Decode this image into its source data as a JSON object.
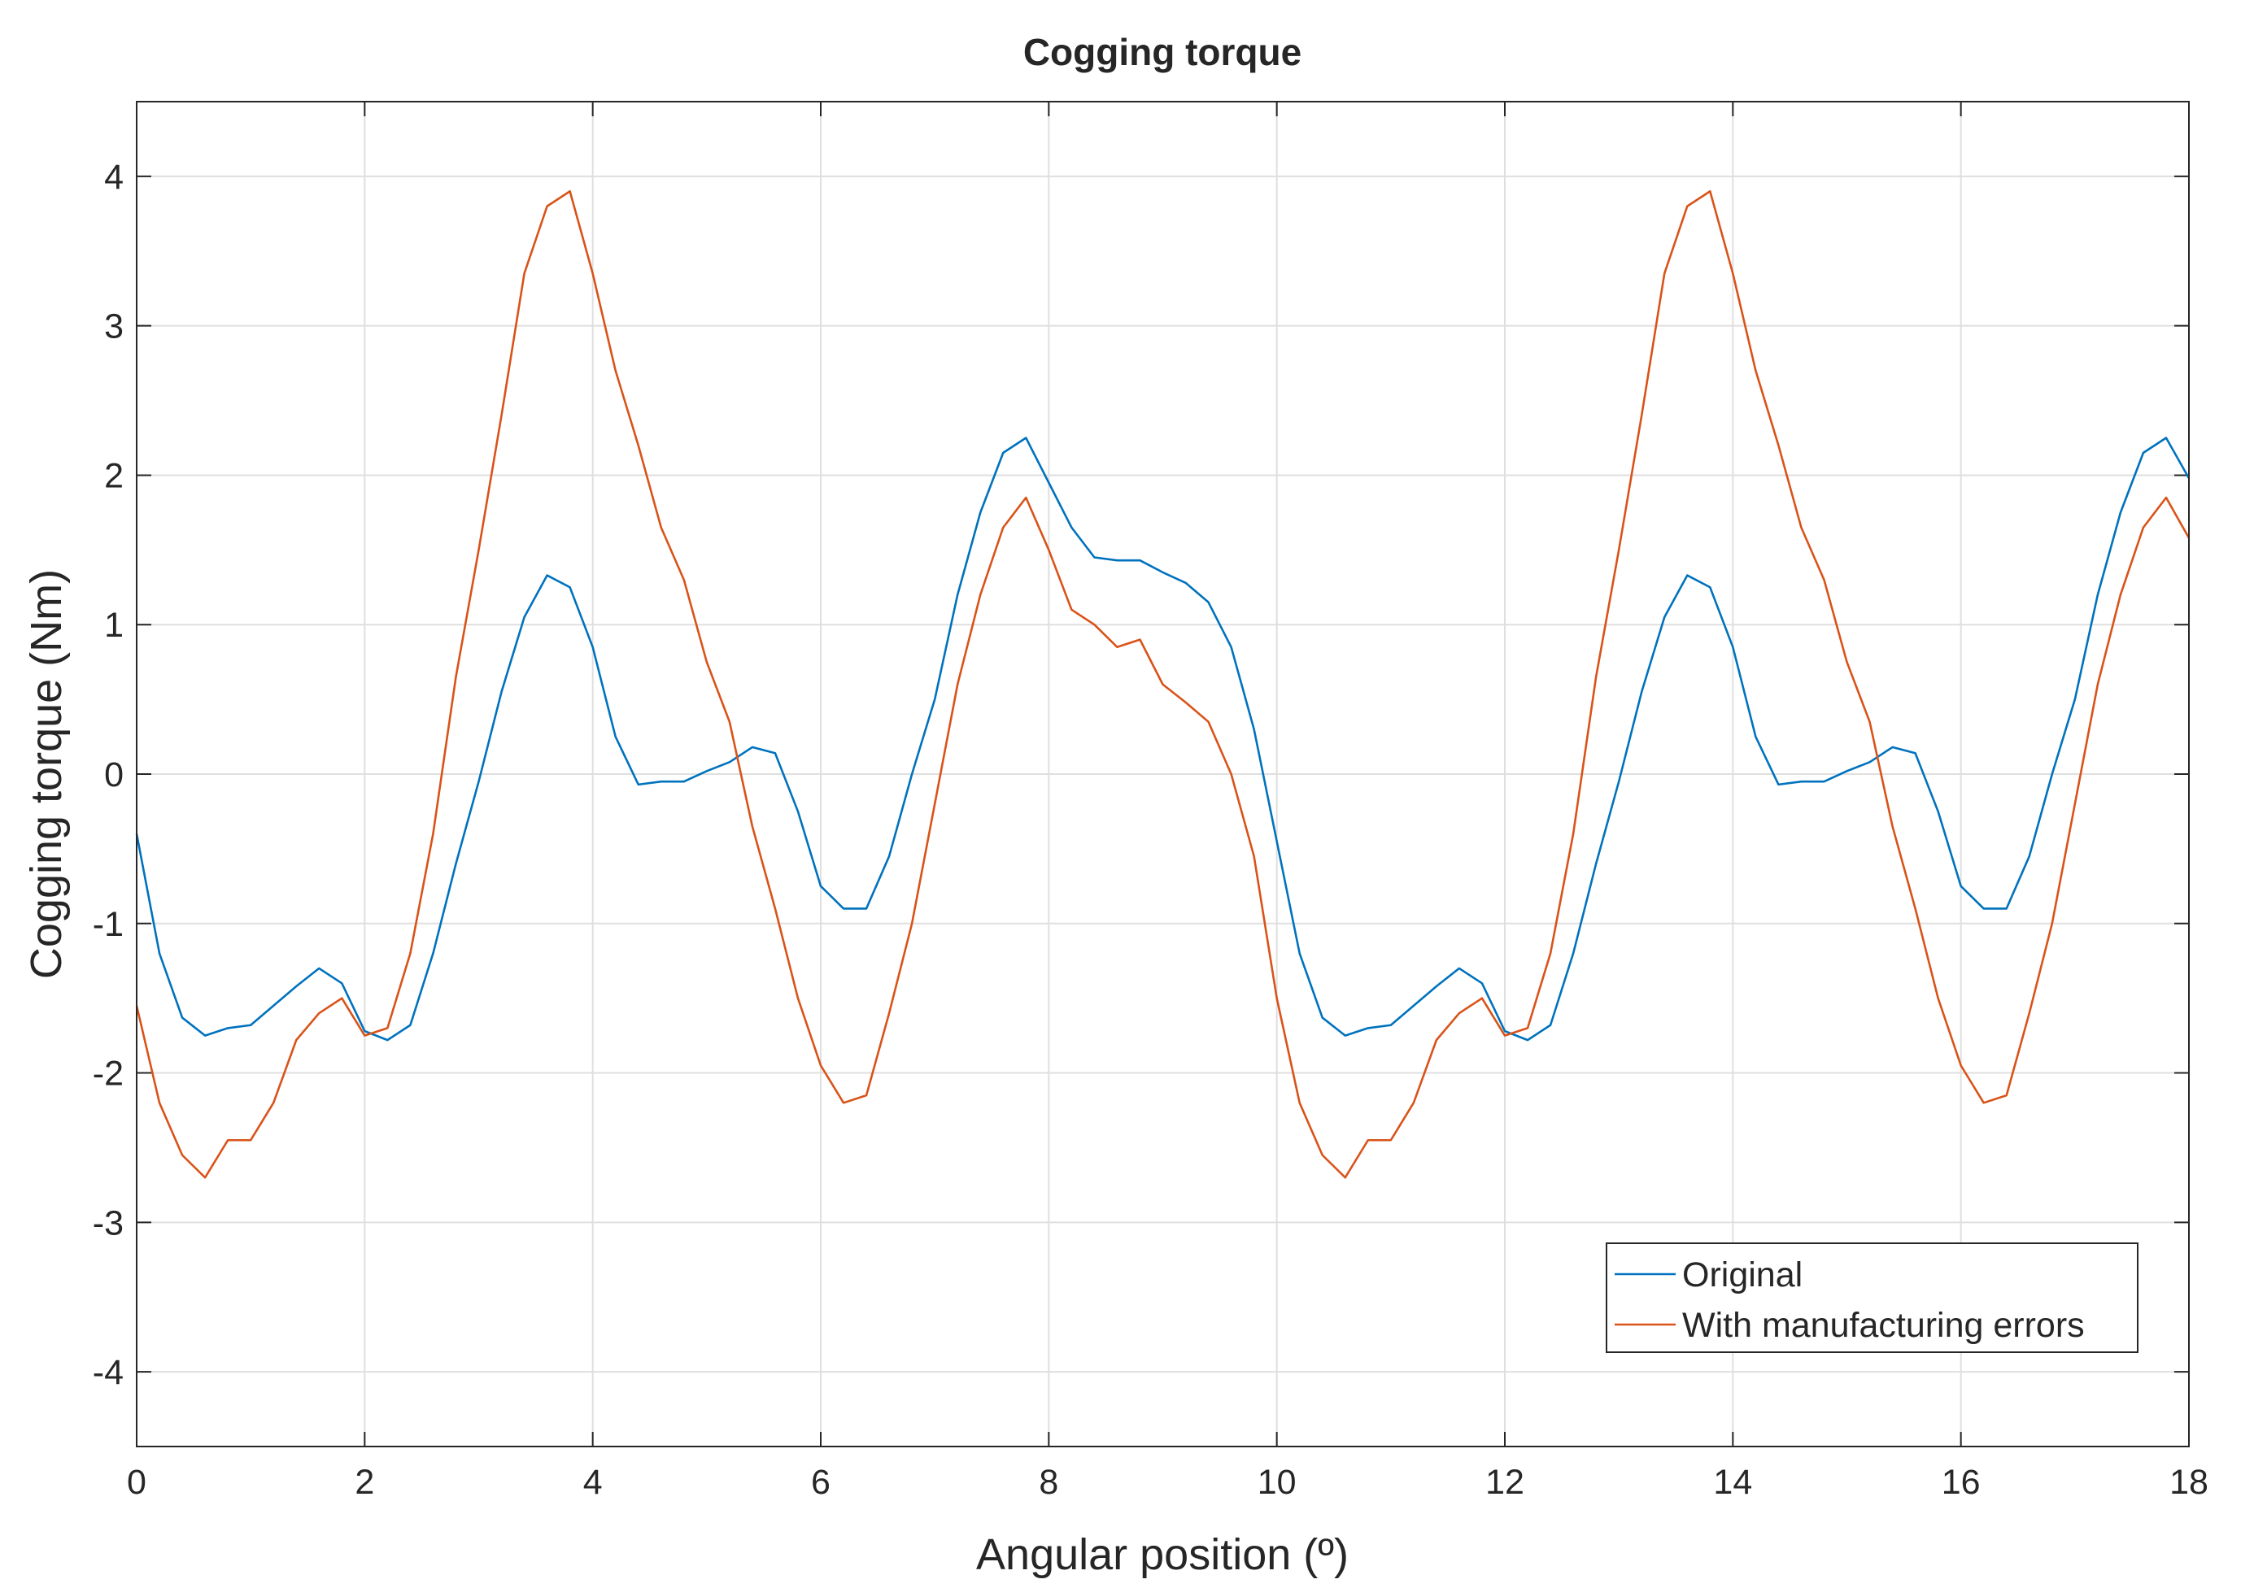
{
  "chart_data": {
    "type": "line",
    "title": "Cogging torque",
    "x_label": "Angular position (º)",
    "y_label": "Cogging torque (Nm)",
    "x": [
      0,
      0.2,
      0.4,
      0.6,
      0.8,
      1,
      1.2,
      1.4,
      1.6,
      1.8,
      2,
      2.2,
      2.4,
      2.6,
      2.8,
      3,
      3.2,
      3.4,
      3.6,
      3.8,
      4,
      4.2,
      4.4,
      4.6,
      4.8,
      5,
      5.2,
      5.4,
      5.6,
      5.8,
      6,
      6.2,
      6.4,
      6.6,
      6.8,
      7,
      7.2,
      7.4,
      7.6,
      7.8,
      8,
      8.2,
      8.4,
      8.6,
      8.8,
      9,
      9.2,
      9.4,
      9.6,
      9.8,
      10,
      10.2,
      10.4,
      10.6,
      10.8,
      11,
      11.2,
      11.4,
      11.6,
      11.8,
      12,
      12.2,
      12.4,
      12.6,
      12.8,
      13,
      13.2,
      13.4,
      13.6,
      13.8,
      14,
      14.2,
      14.4,
      14.6,
      14.8,
      15,
      15.2,
      15.4,
      15.6,
      15.8,
      16,
      16.2,
      16.4,
      16.6,
      16.8,
      17,
      17.2,
      17.4,
      17.6,
      17.8,
      18
    ],
    "series": [
      {
        "name": "Original",
        "color": "#0072BD",
        "values": [
          -0.4,
          -1.2,
          -1.63,
          -1.75,
          -1.7,
          -1.68,
          -1.55,
          -1.42,
          -1.3,
          -1.4,
          -1.72,
          -1.78,
          -1.68,
          -1.2,
          -0.6,
          -0.05,
          0.55,
          1.05,
          1.33,
          1.25,
          0.85,
          0.25,
          -0.07,
          -0.05,
          -0.05,
          0.02,
          0.08,
          0.18,
          0.14,
          -0.25,
          -0.75,
          -0.9,
          -0.9,
          -0.55,
          0.0,
          0.5,
          1.2,
          1.75,
          2.15,
          2.25,
          1.95,
          1.65,
          1.45,
          1.43,
          1.43,
          1.35,
          1.28,
          1.15,
          0.85,
          0.3,
          -0.45,
          -1.2,
          -1.63,
          -1.75,
          -1.7,
          -1.68,
          -1.55,
          -1.42,
          -1.3,
          -1.4,
          -1.72,
          -1.78,
          -1.68,
          -1.2,
          -0.6,
          -0.05,
          0.55,
          1.05,
          1.33,
          1.25,
          0.85,
          0.25,
          -0.07,
          -0.05,
          -0.05,
          0.02,
          0.08,
          0.18,
          0.14,
          -0.25,
          -0.75,
          -0.9,
          -0.9,
          -0.55,
          0.0,
          0.5,
          1.2,
          1.75,
          2.15,
          2.25,
          1.98
        ]
      },
      {
        "name": "With manufacturing errors",
        "color": "#D95319",
        "values": [
          -1.55,
          -2.2,
          -2.55,
          -2.7,
          -2.45,
          -2.45,
          -2.2,
          -1.78,
          -1.6,
          -1.5,
          -1.75,
          -1.7,
          -1.2,
          -0.4,
          0.65,
          1.5,
          2.4,
          3.35,
          3.8,
          3.9,
          3.35,
          2.7,
          2.2,
          1.65,
          1.3,
          0.75,
          0.35,
          -0.35,
          -0.9,
          -1.5,
          -1.95,
          -2.2,
          -2.15,
          -1.6,
          -1.0,
          -0.2,
          0.6,
          1.2,
          1.65,
          1.85,
          1.5,
          1.1,
          1.0,
          0.85,
          0.9,
          0.6,
          0.48,
          0.35,
          0.0,
          -0.55,
          -1.5,
          -2.2,
          -2.55,
          -2.7,
          -2.45,
          -2.45,
          -2.2,
          -1.78,
          -1.6,
          -1.5,
          -1.75,
          -1.7,
          -1.2,
          -0.4,
          0.65,
          1.5,
          2.4,
          3.35,
          3.8,
          3.9,
          3.35,
          2.7,
          2.2,
          1.65,
          1.3,
          0.75,
          0.35,
          -0.35,
          -0.9,
          -1.5,
          -1.95,
          -2.2,
          -2.15,
          -1.6,
          -1.0,
          -0.2,
          0.6,
          1.2,
          1.65,
          1.85,
          1.58
        ]
      }
    ],
    "xlim": [
      0,
      18
    ],
    "xticks": [
      0,
      2,
      4,
      6,
      8,
      10,
      12,
      14,
      16,
      18
    ],
    "ylim": [
      -4.5,
      4.5
    ],
    "yticks": [
      -4,
      -3,
      -2,
      -1,
      0,
      1,
      2,
      3,
      4
    ],
    "grid": true,
    "legend_position": "lower right"
  }
}
